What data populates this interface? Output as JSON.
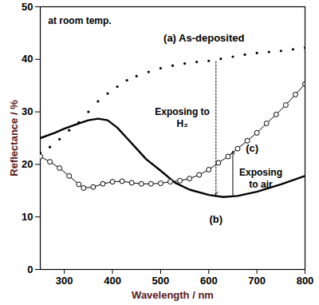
{
  "chart_data": {
    "type": "line",
    "x_label": "Wavelength / nm",
    "y_label": "Reflectance / %",
    "xlim": [
      250,
      800
    ],
    "ylim": [
      0,
      50
    ],
    "xticks": [
      300,
      400,
      500,
      600,
      700,
      800
    ],
    "yticks": [
      0,
      10,
      20,
      30,
      40,
      50
    ],
    "grid": false,
    "series": [
      {
        "name": "(a) As-deposited",
        "color": "#000000",
        "marker": "dot",
        "line_style": "none",
        "label_x": 590,
        "label_y": 44,
        "x": [
          250,
          270,
          290,
          310,
          330,
          350,
          370,
          390,
          410,
          430,
          450,
          475,
          500,
          525,
          550,
          575,
          600,
          625,
          650,
          675,
          700,
          725,
          750,
          775,
          800
        ],
        "values": [
          22.2,
          23.3,
          24.8,
          26.5,
          28.0,
          30.0,
          32.0,
          33.5,
          34.8,
          36.0,
          36.8,
          37.6,
          38.3,
          38.8,
          39.2,
          39.5,
          39.7,
          40.1,
          40.5,
          40.9,
          41.2,
          41.4,
          41.6,
          41.9,
          42.2
        ]
      },
      {
        "name": "(b)",
        "color": "#000000",
        "marker": "none",
        "line_style": "solid",
        "label_x": 615,
        "label_y": 9.5,
        "x": [
          250,
          280,
          300,
          330,
          350,
          370,
          390,
          410,
          430,
          450,
          470,
          500,
          530,
          560,
          600,
          630,
          660,
          700,
          750,
          800
        ],
        "values": [
          25.0,
          26.0,
          26.8,
          27.8,
          28.4,
          28.7,
          28.4,
          27.0,
          25.0,
          23.0,
          21.0,
          18.8,
          16.5,
          15.2,
          14.2,
          13.8,
          14.0,
          14.8,
          16.2,
          17.8
        ]
      },
      {
        "name": "(c)",
        "color": "#000000",
        "marker": "circle",
        "line_style": "solid",
        "label_x": 690,
        "label_y": 23,
        "x": [
          250,
          270,
          290,
          310,
          330,
          340,
          360,
          380,
          400,
          420,
          440,
          460,
          480,
          500,
          520,
          540,
          560,
          580,
          600,
          620,
          640,
          660,
          680,
          700,
          720,
          740,
          760,
          780,
          800
        ],
        "values": [
          21.5,
          20.5,
          19.3,
          17.8,
          16.2,
          15.5,
          15.7,
          16.3,
          16.7,
          16.8,
          16.5,
          16.3,
          16.3,
          16.4,
          16.7,
          16.9,
          17.3,
          18.0,
          19.0,
          20.3,
          21.5,
          23.0,
          24.5,
          26.0,
          27.8,
          29.5,
          31.3,
          33.3,
          35.3
        ]
      }
    ],
    "annotations": [
      {
        "text": "at room temp.",
        "x": 332,
        "y": 47.5
      },
      {
        "text": "Exposing to\nH₂",
        "x": 545,
        "y": 29
      },
      {
        "text": "Exposing\nto air",
        "x": 708,
        "y": 17.5
      }
    ],
    "arrows": [
      {
        "x": 615,
        "y1": 39.6,
        "y2": 14.2,
        "line_style": "dotted"
      },
      {
        "x": 650,
        "y1": 14.2,
        "y2": 22.5,
        "line_style": "solid"
      }
    ]
  }
}
